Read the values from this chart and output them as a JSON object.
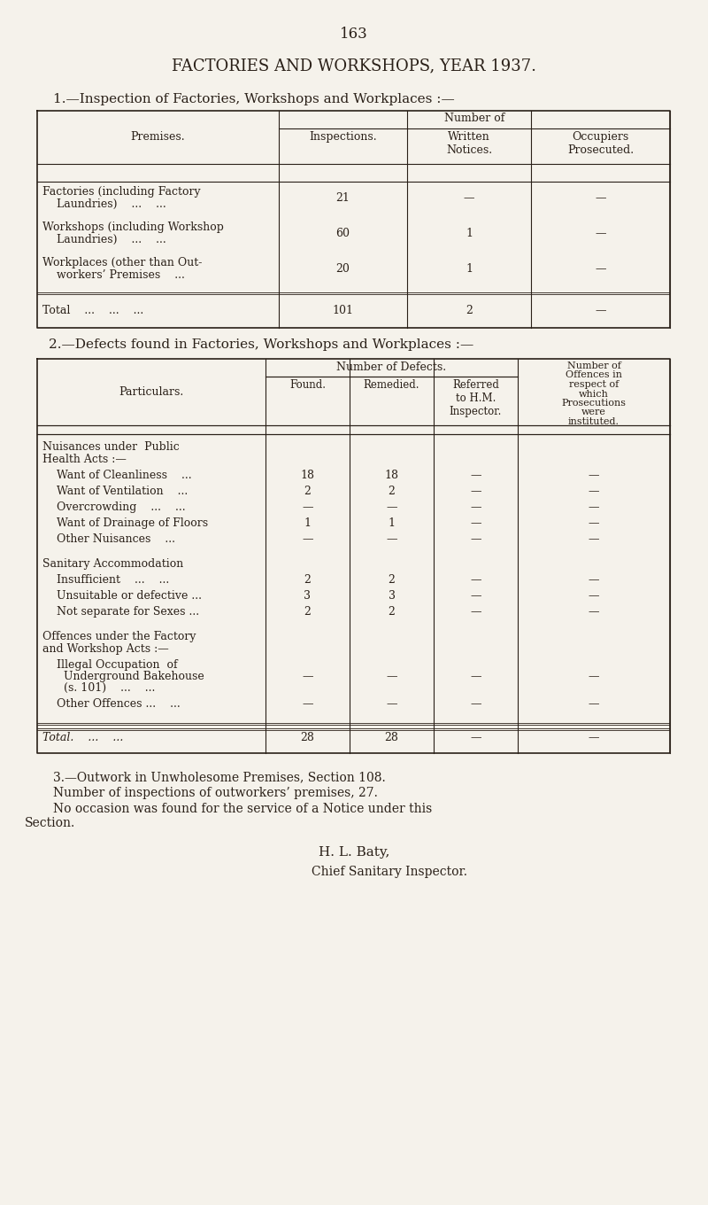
{
  "page_number": "163",
  "main_title": "FACTORIES AND WORKSHOPS, YEAR 1937.",
  "section1_title": "1.—Inspection of Factories, Workshops and Workplaces :—",
  "section1_col_headers": [
    "Inspections.",
    "Written\nNotices.",
    "Occupiers\nProsecuted."
  ],
  "section1_rows": [
    {
      "label": "Factories (including Factory\n    Laundries)    ...    ...",
      "values": [
        "21",
        "—",
        "—"
      ]
    },
    {
      "label": "Workshops (including Workshop\n    Laundries)    ...    ...",
      "values": [
        "60",
        "1",
        "—"
      ]
    },
    {
      "label": "Workplaces (other than Out-\n    workers’ Premises    ...",
      "values": [
        "20",
        "1",
        "—"
      ]
    }
  ],
  "section1_total_label": "Total    ...    ...    ...",
  "section1_total_values": [
    "101",
    "2",
    "—"
  ],
  "section2_title": "2.—Defects found in Factories, Workshops and Workplaces :—",
  "section2_col_headers": [
    "Found.",
    "Remedied.",
    "Referred\nto H.M.\nInspector."
  ],
  "section2_last_col": "Number of\nOffences in\nrespect of\nwhich\nProsecutions\nwere\ninstituted.",
  "section2_groups": [
    {
      "group_label": "Nuisances under  Public\nHealth Acts :—",
      "rows": [
        {
          "label": "    Want of Cleanliness    ...",
          "values": [
            "18",
            "18",
            "—",
            "—"
          ]
        },
        {
          "label": "    Want of Ventilation    ...",
          "values": [
            "2",
            "2",
            "—",
            "—"
          ]
        },
        {
          "label": "    Overcrowding    ...    ...",
          "values": [
            "—",
            "—",
            "—",
            "—"
          ]
        },
        {
          "label": "    Want of Drainage of Floors",
          "values": [
            "1",
            "1",
            "—",
            "—"
          ]
        },
        {
          "label": "    Other Nuisances    ...",
          "values": [
            "—",
            "—",
            "—",
            "—"
          ]
        }
      ]
    },
    {
      "group_label": "Sanitary Accommodation",
      "rows": [
        {
          "label": "    Insufficient    ...    ...",
          "values": [
            "2",
            "2",
            "—",
            "—"
          ]
        },
        {
          "label": "    Unsuitable or defective ...",
          "values": [
            "3",
            "3",
            "—",
            "—"
          ]
        },
        {
          "label": "    Not separate for Sexes ...",
          "values": [
            "2",
            "2",
            "—",
            "—"
          ]
        }
      ]
    },
    {
      "group_label": "Offences under the Factory\nand Workshop Acts :—",
      "rows": [
        {
          "label": "    Illegal Occupation  of\n      Underground Bakehouse\n      (s. 101)    ...    ...",
          "values": [
            "—",
            "—",
            "—",
            "—"
          ]
        },
        {
          "label": "    Other Offences ...    ...",
          "values": [
            "—",
            "—",
            "—",
            "—"
          ]
        }
      ]
    }
  ],
  "section2_total_label": "Total.    ...    ...",
  "section2_total_values": [
    "28",
    "28",
    "—",
    "—"
  ],
  "section3_title": "3.—Outwork in Unwholesome Premises, Section 108.",
  "section3_line1": "Number of inspections of outworkers’ premises, 27.",
  "section3_line2a": "No occasion was found for the service of a Notice under this",
  "section3_line2b": "Section.",
  "signature_line1": "H. L. Baty,",
  "signature_line2": "Chief Sanitary Inspector.",
  "bg_color": "#f5f2eb",
  "text_color": "#2a2018",
  "border_color": "#2a2018"
}
